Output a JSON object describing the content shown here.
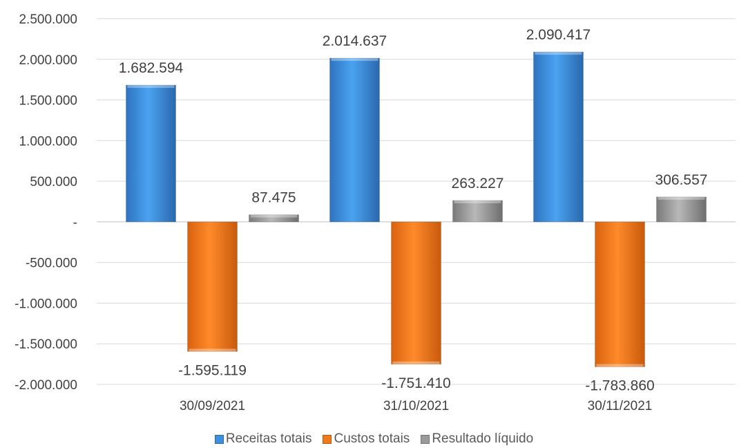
{
  "chart_data": {
    "type": "bar",
    "categories": [
      "30/09/2021",
      "31/10/2021",
      "30/11/2021"
    ],
    "series": [
      {
        "name": "Receitas totais",
        "values": [
          1682594,
          2014637,
          2090417
        ],
        "labels": [
          "1.682.594",
          "2.014.637",
          "2.090.417"
        ],
        "color": "#3e8fdc"
      },
      {
        "name": "Custos totais",
        "values": [
          -1595119,
          -1751410,
          -1783860
        ],
        "labels": [
          "-1.595.119",
          "-1.751.410",
          "-1.783.860"
        ],
        "color": "#f07a1a"
      },
      {
        "name": "Resultado líquido",
        "values": [
          87475,
          263227,
          306557
        ],
        "labels": [
          "87.475",
          "263.227",
          "306.557"
        ],
        "color": "#9a9a9a"
      }
    ],
    "ylim": [
      -2000000,
      2500000
    ],
    "yticks": [
      2500000,
      2000000,
      1500000,
      1000000,
      500000,
      0,
      -500000,
      -1000000,
      -1500000,
      -2000000
    ],
    "ytick_labels": [
      "2.500.000",
      "2.000.000",
      "1.500.000",
      "1.000.000",
      "500.000",
      "-",
      "-500.000",
      "-1.000.000",
      "-1.500.000",
      "-2.000.000"
    ],
    "grid": true,
    "legend_position": "bottom"
  }
}
